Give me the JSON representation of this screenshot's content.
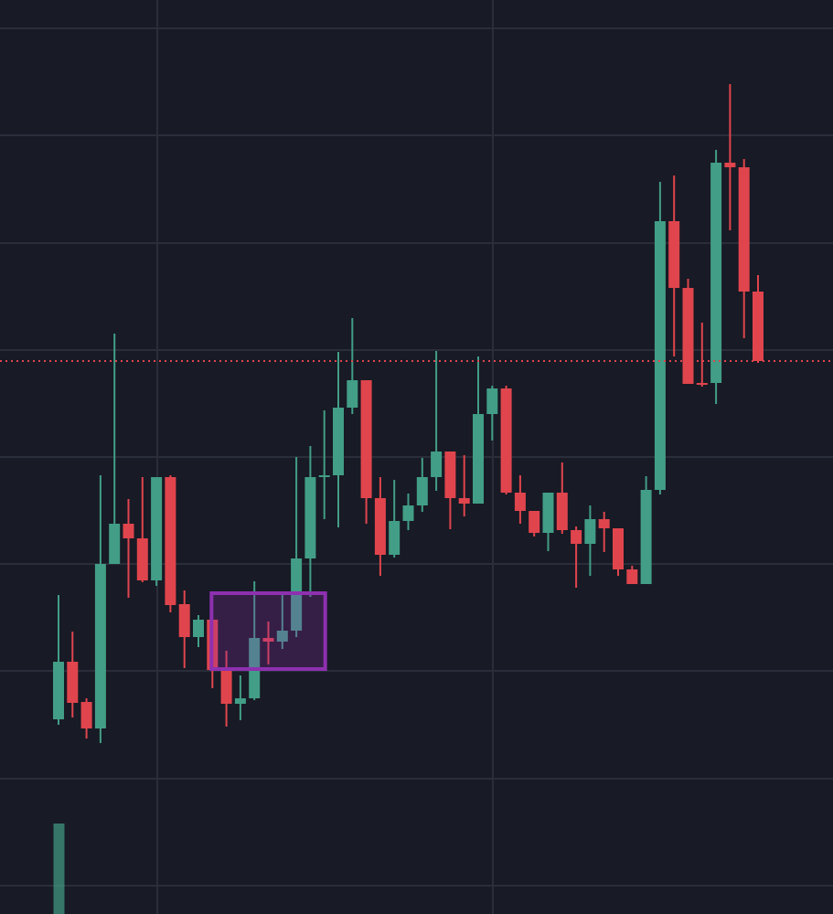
{
  "chart_data": {
    "type": "candlestick",
    "ylim": [
      0,
      1000
    ],
    "yticks": [
      31,
      148,
      266,
      383,
      500,
      617,
      734,
      852,
      969
    ],
    "grid": true,
    "up_color": "#429e86",
    "down_color": "#e0454d",
    "open": [
      213,
      276,
      232,
      203,
      383,
      427,
      411,
      365,
      478,
      339,
      303,
      322,
      267,
      230,
      236,
      302,
      298,
      310,
      389,
      478,
      480,
      554,
      584,
      455,
      393,
      430,
      447,
      478,
      506,
      455,
      449,
      547,
      575,
      461,
      441,
      417,
      461,
      420,
      405,
      432,
      422,
      377,
      361,
      464,
      758,
      685,
      581,
      581,
      822,
      817,
      681
    ],
    "high": [
      349,
      309,
      236,
      480,
      635,
      454,
      478,
      478,
      480,
      354,
      327,
      322,
      288,
      261,
      364,
      320,
      349,
      500,
      512,
      551,
      615,
      652,
      584,
      478,
      475,
      460,
      499,
      616,
      506,
      502,
      610,
      578,
      578,
      480,
      441,
      461,
      494,
      424,
      447,
      440,
      422,
      381,
      479,
      801,
      808,
      695,
      647,
      836,
      908,
      826,
      699
    ],
    "low": [
      207,
      215,
      192,
      187,
      383,
      346,
      363,
      359,
      330,
      269,
      292,
      247,
      205,
      212,
      234,
      273,
      290,
      303,
      347,
      432,
      423,
      547,
      427,
      370,
      390,
      420,
      440,
      463,
      421,
      435,
      449,
      518,
      459,
      427,
      413,
      397,
      416,
      357,
      370,
      396,
      370,
      361,
      361,
      459,
      610,
      580,
      577,
      558,
      748,
      630,
      603
    ],
    "close": [
      276,
      231,
      203,
      383,
      427,
      411,
      365,
      478,
      338,
      303,
      322,
      267,
      230,
      236,
      302,
      298,
      310,
      389,
      478,
      480,
      554,
      584,
      455,
      393,
      430,
      447,
      478,
      506,
      455,
      449,
      547,
      575,
      461,
      441,
      417,
      461,
      420,
      405,
      432,
      422,
      377,
      361,
      464,
      758,
      685,
      580,
      579,
      822,
      817,
      681,
      605
    ],
    "volume": [
      99,
      null,
      null,
      null,
      null,
      null,
      null,
      null,
      null,
      null,
      null,
      null,
      null,
      null,
      null,
      null,
      null,
      null,
      null,
      null,
      null,
      null,
      null,
      null,
      null,
      null,
      null,
      null,
      null,
      null,
      null,
      null,
      null,
      null,
      null,
      null,
      null,
      null,
      null,
      null,
      null,
      null,
      null,
      null,
      null,
      null,
      null,
      null,
      null,
      null,
      null
    ],
    "last_price": 605,
    "last_price_color": "#e0454d",
    "zone": {
      "from": 11,
      "to": 19,
      "low": 268,
      "high": 351,
      "color": "#8e30b0"
    }
  }
}
